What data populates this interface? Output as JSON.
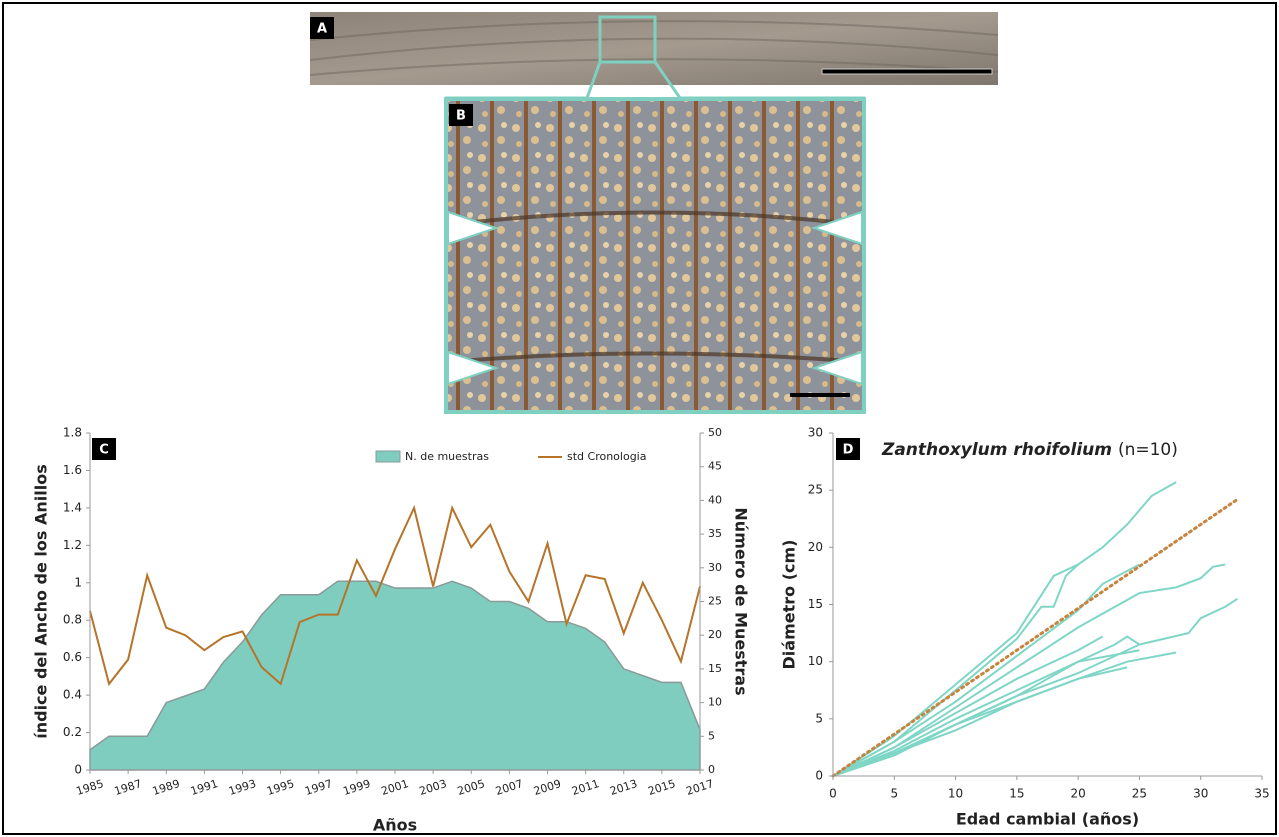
{
  "panels": {
    "A": "A",
    "B": "B"
  },
  "chart_data": [
    {
      "type": "area",
      "panel_label": "C",
      "x_label": "Años",
      "y_label": "índice del Ancho de los Anillos",
      "y2_label": "Número de Muestras",
      "x": [
        1985,
        1986,
        1987,
        1988,
        1989,
        1990,
        1991,
        1992,
        1993,
        1994,
        1995,
        1996,
        1997,
        1998,
        1999,
        2000,
        2001,
        2002,
        2003,
        2004,
        2005,
        2006,
        2007,
        2008,
        2009,
        2010,
        2011,
        2012,
        2013,
        2014,
        2015,
        2016,
        2017
      ],
      "xlim": [
        1985,
        2017
      ],
      "xticks": [
        1985,
        1987,
        1989,
        1991,
        1993,
        1995,
        1997,
        1999,
        2001,
        2003,
        2005,
        2007,
        2009,
        2011,
        2013,
        2015,
        2017
      ],
      "ylim": [
        0,
        1.8
      ],
      "yticks": [
        0,
        0.2,
        0.4,
        0.6,
        0.8,
        1,
        1.2,
        1.4,
        1.6,
        1.8
      ],
      "y2lim": [
        0,
        50
      ],
      "y2ticks": [
        0,
        5,
        10,
        15,
        20,
        25,
        30,
        35,
        40,
        45,
        50
      ],
      "series": [
        {
          "name": "N. de muestras",
          "kind": "area",
          "axis": "y2",
          "color": "#7fcdbf",
          "edge_color": "#8a9a98",
          "values": [
            3,
            5,
            5,
            5,
            10,
            11,
            12,
            16,
            19,
            23,
            26,
            26,
            26,
            28,
            28,
            28,
            27,
            27,
            27,
            28,
            27,
            25,
            25,
            24,
            22,
            22,
            21,
            19,
            15,
            14,
            13,
            13,
            6
          ]
        },
        {
          "name": "std Cronologia",
          "kind": "line",
          "color": "#b5742a",
          "values": [
            0.85,
            0.46,
            0.59,
            1.04,
            0.76,
            0.72,
            0.64,
            0.71,
            0.74,
            0.55,
            0.46,
            0.79,
            0.83,
            0.83,
            1.12,
            0.93,
            1.18,
            1.4,
            0.98,
            1.4,
            1.19,
            1.31,
            1.06,
            0.9,
            1.21,
            0.78,
            1.04,
            1.02,
            0.73,
            1.0,
            0.8,
            0.58,
            0.98
          ]
        }
      ]
    },
    {
      "type": "line",
      "panel_label": "D",
      "title": {
        "species": "Zanthoxylum rhoifolium",
        "sample": "(n=10)"
      },
      "x_label": "Edad cambial (años)",
      "y_label": "Diámetro (cm)",
      "xlim": [
        0,
        35
      ],
      "xticks": [
        0,
        5,
        10,
        15,
        20,
        25,
        30,
        35
      ],
      "ylim": [
        0,
        30
      ],
      "yticks": [
        0,
        5,
        10,
        15,
        20,
        25,
        30
      ],
      "color": "#7fd6c6",
      "series": [
        {
          "x": [
            0,
            5,
            10,
            15,
            18,
            20,
            22,
            24,
            26,
            28
          ],
          "values": [
            0,
            3.5,
            8,
            12.5,
            17.5,
            18.5,
            20,
            22,
            24.5,
            25.7
          ]
        },
        {
          "x": [
            0,
            5,
            10,
            15,
            17,
            18,
            19,
            20
          ],
          "values": [
            0,
            3,
            7.5,
            12,
            14.8,
            14.8,
            17.5,
            18.5
          ]
        },
        {
          "x": [
            0,
            5,
            10,
            15,
            20,
            22,
            25
          ],
          "values": [
            0,
            3,
            6.5,
            10.5,
            14.5,
            16.8,
            18.5
          ]
        },
        {
          "x": [
            0,
            5,
            10,
            15,
            20,
            25,
            28,
            30,
            31,
            32
          ],
          "values": [
            0,
            2.5,
            6,
            9.5,
            13,
            16,
            16.5,
            17.3,
            18.3,
            18.5
          ]
        },
        {
          "x": [
            0,
            5,
            10,
            15,
            20,
            25,
            29,
            30,
            32,
            33
          ],
          "values": [
            0,
            2,
            4.5,
            7,
            9,
            11.5,
            12.5,
            13.8,
            14.8,
            15.5
          ]
        },
        {
          "x": [
            0,
            5,
            10,
            15,
            20,
            22
          ],
          "values": [
            0,
            2.5,
            5.5,
            8.5,
            11,
            12.2
          ]
        },
        {
          "x": [
            0,
            5,
            10,
            15,
            20,
            24,
            28
          ],
          "values": [
            0,
            2,
            4.5,
            6.5,
            8.5,
            10,
            10.8
          ]
        },
        {
          "x": [
            0,
            5,
            10,
            15,
            20,
            23,
            24,
            25
          ],
          "values": [
            0,
            2.2,
            5,
            7.5,
            10,
            11.5,
            12.2,
            11.5
          ]
        },
        {
          "x": [
            0,
            5,
            10,
            15,
            20,
            24
          ],
          "values": [
            0,
            2,
            4,
            6.5,
            8.5,
            9.5
          ]
        },
        {
          "x": [
            0,
            5,
            10,
            15,
            20,
            25
          ],
          "values": [
            0,
            1.8,
            4.5,
            7,
            10,
            11
          ]
        }
      ],
      "trend": {
        "x": [
          0,
          33
        ],
        "values": [
          0,
          24.2
        ],
        "color": "#c8843e"
      }
    }
  ]
}
